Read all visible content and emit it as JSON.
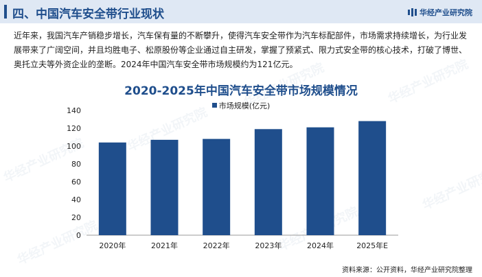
{
  "header": {
    "title": "四、中国汽车安全带行业现状",
    "brand": "华经产业研究院"
  },
  "intro_text": "近年来，我国汽车产销稳步增长，汽车保有量的不断攀升，使得汽车安全带作为汽车标配部件，市场需求持续增长，为行业发展带来了广阔空间，并且均胜电子、松原股份等企业通过自主研发，掌握了预紧式、限力式安全带的核心技术，打破了博世、奥托立夫等外资企业的垄断。2024年中国汽车安全带市场规模约为121亿元。",
  "watermark_text": "华经产业研究院",
  "source": "资料来源：公开资料，华经产业研究院整理",
  "colors": {
    "accent": "#1f4e8c",
    "header_bg": "#dfe8f4",
    "bar": "#1f4e8c"
  },
  "chart_data": {
    "type": "bar",
    "title": "2020-2025年中国汽车安全带市场规模情况",
    "legend": "市场规模(亿元)",
    "categories": [
      "2020年",
      "2021年",
      "2022年",
      "2023年",
      "2024年",
      "2025年E"
    ],
    "values": [
      104,
      107,
      108,
      119,
      121,
      128
    ],
    "yticks": [
      0,
      20,
      40,
      60,
      80,
      100,
      120,
      140
    ],
    "ylim": [
      0,
      140
    ],
    "xlabel": "",
    "ylabel": "",
    "grid": false,
    "legend_position": "top-center"
  }
}
